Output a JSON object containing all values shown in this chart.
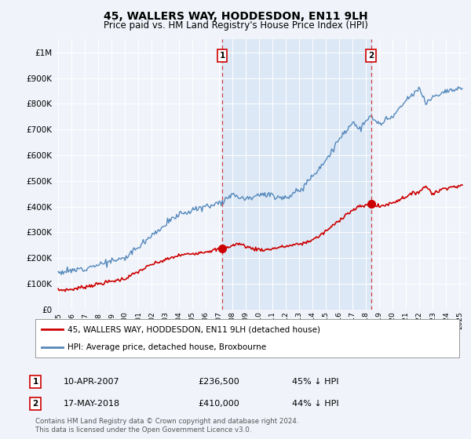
{
  "title": "45, WALLERS WAY, HODDESDON, EN11 9LH",
  "subtitle": "Price paid vs. HM Land Registry's House Price Index (HPI)",
  "bg_color": "#f0f4fa",
  "plot_bg_color": "#f0f4fa",
  "legend_label_red": "45, WALLERS WAY, HODDESDON, EN11 9LH (detached house)",
  "legend_label_blue": "HPI: Average price, detached house, Broxbourne",
  "note1_label": "1",
  "note1_date": "10-APR-2007",
  "note1_price": "£236,500",
  "note1_hpi": "45% ↓ HPI",
  "note2_label": "2",
  "note2_date": "17-MAY-2018",
  "note2_price": "£410,000",
  "note2_hpi": "44% ↓ HPI",
  "footer": "Contains HM Land Registry data © Crown copyright and database right 2024.\nThis data is licensed under the Open Government Licence v3.0.",
  "xmin": 1994.7,
  "xmax": 2025.5,
  "ymin": 0,
  "ymax": 1050000,
  "vline1_x": 2007.27,
  "vline2_x": 2018.38,
  "marker1_x": 2007.27,
  "marker1_y": 236500,
  "marker2_x": 2018.38,
  "marker2_y": 410000,
  "yticks": [
    0,
    100000,
    200000,
    300000,
    400000,
    500000,
    600000,
    700000,
    800000,
    900000,
    1000000
  ],
  "ytick_labels": [
    "£0",
    "£100K",
    "£200K",
    "£300K",
    "£400K",
    "£500K",
    "£600K",
    "£700K",
    "£800K",
    "£900K",
    "£1M"
  ],
  "red_color": "#cc0000",
  "blue_color": "#5588bb",
  "shade_color": "#dce8f5",
  "vline_color": "#cc4444"
}
